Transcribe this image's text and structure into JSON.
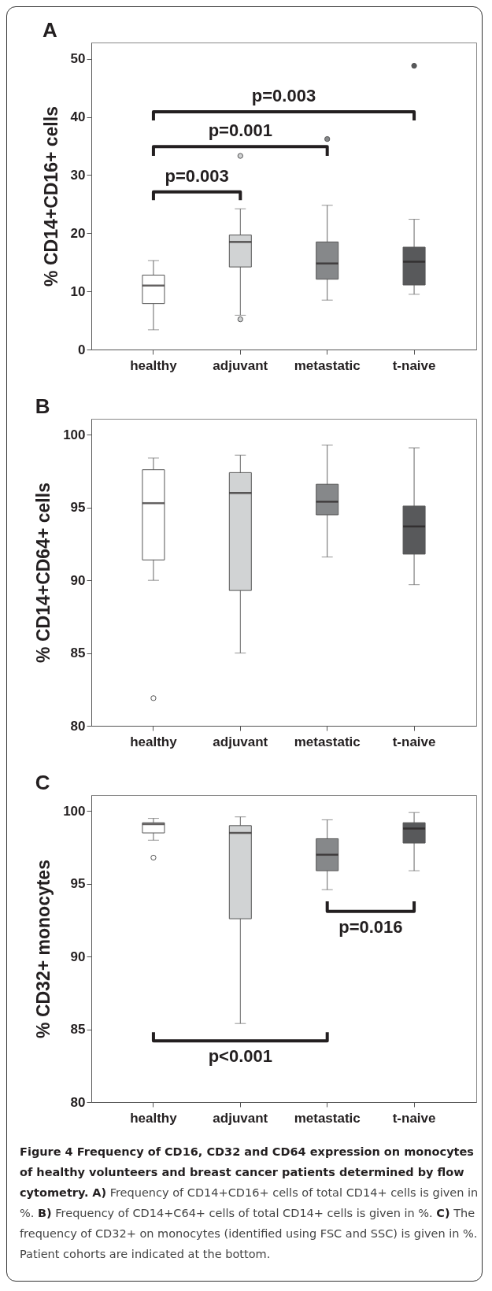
{
  "chart_data": [
    {
      "type": "box",
      "title": "A",
      "ylabel": "% CD14+CD16+ cells",
      "categories": [
        "healthy",
        "adjuvant",
        "metastatic",
        "t-naive"
      ],
      "colors": [
        "#ffffff",
        "#d1d3d4",
        "#86888a",
        "#58595b"
      ],
      "ylim": [
        0,
        52.8
      ],
      "yticks": [
        0,
        10,
        20,
        30,
        40,
        50
      ],
      "boxes": [
        {
          "low": 3.4,
          "q1": 7.9,
          "median": 11.0,
          "q3": 12.8,
          "high": 15.3
        },
        {
          "low": 5.9,
          "q1": 14.2,
          "median": 18.5,
          "q3": 19.7,
          "high": 24.2,
          "outliers": [
            33.3,
            5.2
          ]
        },
        {
          "low": 8.5,
          "q1": 12.1,
          "median": 14.8,
          "q3": 18.5,
          "high": 24.8,
          "outliers": [
            36.2
          ]
        },
        {
          "low": 9.5,
          "q1": 11.1,
          "median": 15.1,
          "q3": 17.6,
          "high": 22.4,
          "outliers": [
            48.8
          ]
        }
      ],
      "annotations": [
        "p=0.003",
        "p=0.001",
        "p=0.003"
      ]
    },
    {
      "type": "box",
      "title": "B",
      "ylabel": "% CD14+CD64+ cells",
      "categories": [
        "healthy",
        "adjuvant",
        "metastatic",
        "t-naive"
      ],
      "colors": [
        "#ffffff",
        "#d1d3d4",
        "#86888a",
        "#58595b"
      ],
      "ylim": [
        80,
        101.1
      ],
      "yticks": [
        80,
        85,
        90,
        95,
        100
      ],
      "boxes": [
        {
          "low": 90.0,
          "q1": 91.4,
          "median": 95.3,
          "q3": 97.6,
          "high": 98.4,
          "outliers": [
            81.9
          ]
        },
        {
          "low": 85.0,
          "q1": 89.3,
          "median": 96.0,
          "q3": 97.4,
          "high": 98.6
        },
        {
          "low": 91.6,
          "q1": 94.5,
          "median": 95.4,
          "q3": 96.6,
          "high": 99.3
        },
        {
          "low": 89.7,
          "q1": 91.8,
          "median": 93.7,
          "q3": 95.1,
          "high": 99.1
        }
      ]
    },
    {
      "type": "box",
      "title": "C",
      "ylabel": "% CD32+ monocytes",
      "categories": [
        "healthy",
        "adjuvant",
        "metastatic",
        "t-naive"
      ],
      "colors": [
        "#ffffff",
        "#d1d3d4",
        "#86888a",
        "#58595b"
      ],
      "ylim": [
        80,
        101.1
      ],
      "yticks": [
        80,
        85,
        90,
        95,
        100
      ],
      "boxes": [
        {
          "low": 98.0,
          "q1": 98.5,
          "median": 99.1,
          "q3": 99.2,
          "high": 99.5,
          "outliers": [
            96.8
          ]
        },
        {
          "low": 85.4,
          "q1": 92.6,
          "median": 98.5,
          "q3": 99.0,
          "high": 99.6
        },
        {
          "low": 94.6,
          "q1": 95.9,
          "median": 97.0,
          "q3": 98.1,
          "high": 99.4
        },
        {
          "low": 95.9,
          "q1": 97.8,
          "median": 98.8,
          "q3": 99.2,
          "high": 99.9
        }
      ],
      "annotations": [
        "p=0.016",
        "p<0.001",
        "Figure 4 Frequency of CD16, CD32 and CD64 expression on monocytes of healthy volunteers and breast cancer patients determined by flow cytometry.",
        "A) Frequency of CD14+CD16+ cells of total CD14+ cells is given in %.",
        "B) Frequency of CD14+C64+ cells of total CD14+ cells is given in %.",
        "C) The frequency of CD32+ on monocytes (identified using FSC and SSC) is given in %. Patient cohorts are indicated at the bottom."
      ]
    }
  ]
}
